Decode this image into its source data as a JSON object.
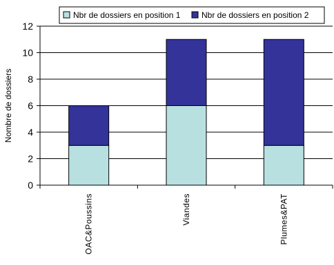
{
  "chart_data": {
    "type": "bar",
    "stacked": true,
    "categories": [
      "OAC&Poussins",
      "Viandes",
      "Plumes&PAT"
    ],
    "series": [
      {
        "name": "Nbr de dossiers en position 1",
        "values": [
          3,
          6,
          3
        ],
        "color": "#b8e0e0"
      },
      {
        "name": "Nbr de dossiers en position 2",
        "values": [
          3,
          5,
          8
        ],
        "color": "#333399"
      }
    ],
    "ylabel": "Nombre de dossiers",
    "ylim": [
      0,
      12
    ],
    "yticks": [
      0,
      2,
      4,
      6,
      8,
      10,
      12
    ],
    "grid": true,
    "legend": "top"
  }
}
